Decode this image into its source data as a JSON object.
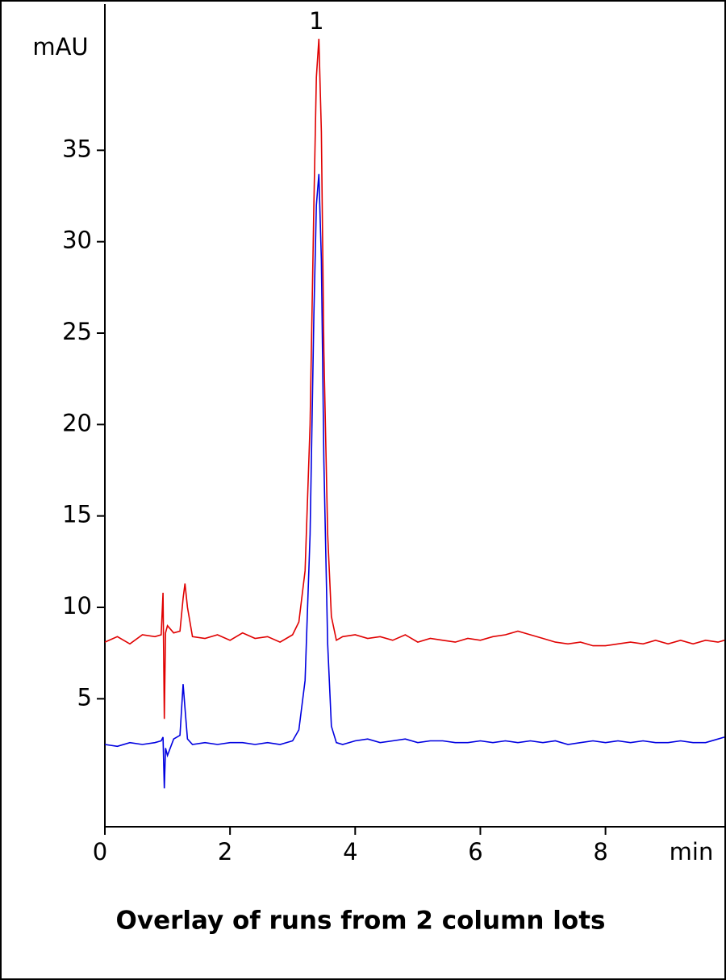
{
  "chart_data": {
    "type": "line",
    "title": "Overlay of runs from 2 column lots",
    "x_label": "min",
    "y_label": "mAU",
    "annotations": [
      {
        "text": "1",
        "x": 3.42
      }
    ],
    "x": [
      0,
      0.2,
      0.4,
      0.6,
      0.8,
      0.9,
      0.93,
      0.95,
      0.97,
      1.0,
      1.1,
      1.2,
      1.25,
      1.28,
      1.32,
      1.4,
      1.6,
      1.8,
      2.0,
      2.2,
      2.4,
      2.6,
      2.8,
      3.0,
      3.1,
      3.2,
      3.28,
      3.34,
      3.38,
      3.42,
      3.46,
      3.5,
      3.56,
      3.62,
      3.7,
      3.8,
      4.0,
      4.2,
      4.4,
      4.6,
      4.8,
      5.0,
      5.2,
      5.4,
      5.6,
      5.8,
      6.0,
      6.2,
      6.4,
      6.6,
      6.8,
      7.0,
      7.2,
      7.4,
      7.6,
      7.8,
      8.0,
      8.2,
      8.4,
      8.6,
      8.8,
      9.0,
      9.2,
      9.4,
      9.6,
      9.8,
      9.9
    ],
    "series": [
      {
        "color": "#e00000",
        "values": [
          8.1,
          8.4,
          8.0,
          8.5,
          8.4,
          8.5,
          10.8,
          3.9,
          8.6,
          9.0,
          8.6,
          8.7,
          10.5,
          11.3,
          10.0,
          8.4,
          8.3,
          8.5,
          8.2,
          8.6,
          8.3,
          8.4,
          8.1,
          8.5,
          9.2,
          12,
          20,
          32,
          39,
          41.1,
          36,
          24,
          14,
          9.5,
          8.2,
          8.4,
          8.5,
          8.3,
          8.4,
          8.2,
          8.5,
          8.1,
          8.3,
          8.2,
          8.1,
          8.3,
          8.2,
          8.4,
          8.5,
          8.7,
          8.5,
          8.3,
          8.1,
          8.0,
          8.1,
          7.9,
          7.9,
          8.0,
          8.1,
          8.0,
          8.2,
          8.0,
          8.2,
          8.0,
          8.2,
          8.1,
          8.2
        ]
      },
      {
        "color": "#0000e0",
        "values": [
          2.5,
          2.4,
          2.6,
          2.5,
          2.6,
          2.7,
          2.9,
          0.1,
          2.3,
          1.9,
          2.8,
          3.0,
          5.8,
          4.5,
          2.8,
          2.5,
          2.6,
          2.5,
          2.6,
          2.6,
          2.5,
          2.6,
          2.5,
          2.7,
          3.3,
          6,
          14,
          26,
          32,
          33.7,
          29,
          18,
          8,
          3.5,
          2.6,
          2.5,
          2.7,
          2.8,
          2.6,
          2.7,
          2.8,
          2.6,
          2.7,
          2.7,
          2.6,
          2.6,
          2.7,
          2.6,
          2.7,
          2.6,
          2.7,
          2.6,
          2.7,
          2.5,
          2.6,
          2.7,
          2.6,
          2.7,
          2.6,
          2.7,
          2.6,
          2.6,
          2.7,
          2.6,
          2.6,
          2.8,
          2.9
        ]
      }
    ],
    "xlim": [
      0,
      9.9
    ],
    "xticks": [
      0,
      2,
      4,
      6,
      8
    ],
    "ylim": [
      -2,
      43
    ],
    "yticks": [
      5,
      10,
      15,
      20,
      25,
      30,
      35
    ]
  }
}
